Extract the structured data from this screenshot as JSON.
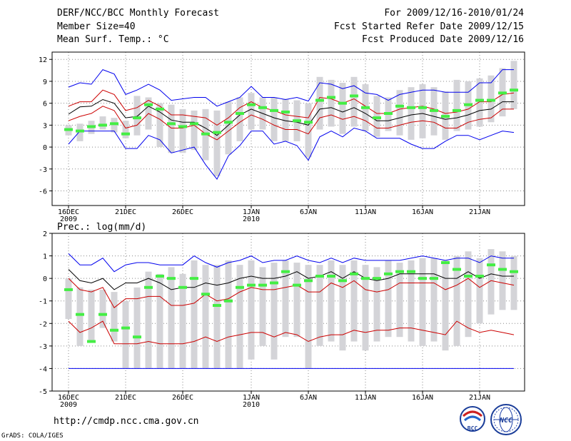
{
  "header": {
    "title": "DERF/NCC/BCC Monthly Forecast",
    "member": "Member Size=40",
    "variable": "Mean Surf. Temp.: °C",
    "period": "For 2009/12/16-2010/01/24",
    "start": "Fcst Started Refer Date 2009/12/15",
    "produced": "Fcst Produced Date 2009/12/16"
  },
  "footer": {
    "url": "http://cmdp.ncc.cma.gov.cn",
    "credit": "GrADS: COLA/IGES",
    "logo_left": "BCC",
    "logo_right": "NCC"
  },
  "colors": {
    "max_line": "#0000ee",
    "pct_line": "#cc0000",
    "mean_line": "#000000",
    "box": "#d4d4d8",
    "obs": "#44ee44"
  },
  "chart_data": [
    {
      "type": "line",
      "title": "Mean Surf. Temp.: °C",
      "ylim": [
        -8,
        13
      ],
      "yticks": [
        -6,
        -3,
        0,
        3,
        6,
        9,
        12
      ],
      "grid": true,
      "x_ticks": [
        {
          "day": 1,
          "label": "16DEC",
          "sub": "2009"
        },
        {
          "day": 6,
          "label": "21DEC",
          "sub": ""
        },
        {
          "day": 11,
          "label": "26DEC",
          "sub": ""
        },
        {
          "day": 17,
          "label": "1JAN",
          "sub": "2010"
        },
        {
          "day": 22,
          "label": "6JAN",
          "sub": ""
        },
        {
          "day": 27,
          "label": "11JAN",
          "sub": ""
        },
        {
          "day": 32,
          "label": "16JAN",
          "sub": ""
        },
        {
          "day": 37,
          "label": "21JAN",
          "sub": ""
        }
      ],
      "days": [
        1,
        2,
        3,
        4,
        5,
        6,
        7,
        8,
        9,
        10,
        11,
        12,
        13,
        14,
        15,
        16,
        17,
        18,
        19,
        20,
        21,
        22,
        23,
        24,
        25,
        26,
        27,
        28,
        29,
        30,
        31,
        32,
        33,
        34,
        35,
        36,
        37,
        38,
        39,
        40
      ],
      "max": [
        8.2,
        8.8,
        8.6,
        10.6,
        10.0,
        7.2,
        7.8,
        8.6,
        7.8,
        6.4,
        6.6,
        6.8,
        6.8,
        5.6,
        6.2,
        6.8,
        8.3,
        6.8,
        6.8,
        6.5,
        6.8,
        6.3,
        8.8,
        8.6,
        8.0,
        8.4,
        7.4,
        7.2,
        6.4,
        7.2,
        7.5,
        7.8,
        7.8,
        7.5,
        7.5,
        7.5,
        8.8,
        8.8,
        10.6,
        10.6
      ],
      "p_upper": [
        5.6,
        6.2,
        6.2,
        7.8,
        7.2,
        5.0,
        5.4,
        6.4,
        5.6,
        4.4,
        4.4,
        4.2,
        4.0,
        3.0,
        4.0,
        5.4,
        6.2,
        5.4,
        5.0,
        4.4,
        4.2,
        4.0,
        6.8,
        6.6,
        6.0,
        6.6,
        5.6,
        4.6,
        4.6,
        5.2,
        5.4,
        5.6,
        5.2,
        4.6,
        4.8,
        5.2,
        6.2,
        6.2,
        7.2,
        7.4
      ],
      "mean": [
        4.5,
        5.5,
        5.6,
        6.5,
        6.0,
        4.0,
        4.2,
        5.6,
        4.8,
        3.7,
        3.4,
        3.4,
        2.6,
        1.6,
        3.0,
        4.4,
        5.2,
        4.6,
        4.0,
        3.6,
        3.4,
        3.0,
        5.2,
        5.4,
        4.8,
        5.4,
        4.6,
        3.6,
        3.6,
        4.0,
        4.4,
        4.6,
        4.2,
        3.8,
        4.0,
        4.4,
        5.0,
        5.2,
        6.2,
        6.2
      ],
      "p_lower": [
        3.6,
        4.2,
        4.6,
        5.6,
        5.0,
        2.6,
        3.0,
        4.6,
        3.8,
        2.6,
        2.6,
        3.0,
        1.8,
        1.0,
        2.2,
        3.4,
        4.4,
        3.8,
        3.0,
        2.4,
        2.4,
        1.8,
        4.0,
        4.4,
        3.8,
        4.2,
        3.6,
        2.6,
        2.6,
        3.0,
        3.4,
        3.6,
        3.4,
        2.6,
        2.6,
        3.4,
        3.8,
        4.0,
        5.2,
        5.2
      ],
      "min": [
        0.4,
        2.2,
        2.2,
        2.2,
        2.2,
        -0.2,
        -0.2,
        1.6,
        1.0,
        -0.8,
        -0.4,
        0.0,
        -2.4,
        -4.4,
        -1.2,
        0.2,
        2.2,
        2.2,
        0.4,
        0.8,
        0.2,
        -1.8,
        1.4,
        2.2,
        1.4,
        2.6,
        2.2,
        1.2,
        1.2,
        1.2,
        0.4,
        -0.2,
        -0.2,
        0.8,
        1.6,
        1.6,
        1.0,
        1.6,
        2.2,
        2.0
      ],
      "box_high": [
        3.0,
        3.2,
        3.6,
        4.2,
        4.0,
        3.6,
        7.0,
        6.8,
        6.0,
        5.8,
        5.2,
        5.0,
        5.2,
        5.0,
        6.2,
        6.8,
        7.4,
        6.8,
        6.8,
        6.6,
        6.4,
        6.0,
        9.6,
        9.2,
        8.8,
        9.6,
        8.6,
        7.0,
        6.8,
        7.8,
        8.2,
        8.6,
        8.2,
        7.6,
        9.2,
        9.0,
        9.4,
        9.8,
        10.8,
        11.8
      ],
      "box_low": [
        1.6,
        0.8,
        1.8,
        2.4,
        2.0,
        1.2,
        1.6,
        2.4,
        0.0,
        -0.8,
        -0.8,
        -0.4,
        -1.8,
        -4.0,
        -1.0,
        0.8,
        2.4,
        2.4,
        0.8,
        0.8,
        0.8,
        -1.4,
        2.4,
        2.8,
        1.8,
        2.8,
        2.2,
        1.4,
        2.2,
        1.6,
        1.0,
        1.2,
        1.6,
        1.0,
        2.2,
        2.4,
        2.8,
        3.4,
        4.2,
        5.2
      ],
      "obs": [
        2.4,
        2.2,
        2.8,
        3.0,
        3.2,
        1.8,
        4.0,
        5.8,
        5.2,
        3.2,
        2.8,
        3.2,
        1.8,
        2.0,
        3.4,
        4.6,
        5.8,
        5.4,
        5.0,
        4.8,
        3.6,
        3.4,
        6.4,
        6.8,
        6.0,
        7.0,
        5.4,
        4.0,
        4.6,
        5.6,
        5.4,
        5.4,
        5.0,
        4.2,
        5.0,
        5.8,
        6.4,
        6.4,
        7.4,
        7.8
      ]
    },
    {
      "type": "line",
      "title": "Prec.: log(mm/d)",
      "ylim": [
        -5,
        2
      ],
      "yticks": [
        -5,
        -4,
        -3,
        -2,
        -1,
        0,
        1,
        2
      ],
      "grid": true,
      "x_ticks": [
        {
          "day": 1,
          "label": "16DEC",
          "sub": "2009"
        },
        {
          "day": 6,
          "label": "21DEC",
          "sub": ""
        },
        {
          "day": 11,
          "label": "26DEC",
          "sub": ""
        },
        {
          "day": 17,
          "label": "1JAN",
          "sub": "2010"
        },
        {
          "day": 22,
          "label": "6JAN",
          "sub": ""
        },
        {
          "day": 27,
          "label": "11JAN",
          "sub": ""
        },
        {
          "day": 32,
          "label": "16JAN",
          "sub": ""
        },
        {
          "day": 37,
          "label": "21JAN",
          "sub": ""
        }
      ],
      "days": [
        1,
        2,
        3,
        4,
        5,
        6,
        7,
        8,
        9,
        10,
        11,
        12,
        13,
        14,
        15,
        16,
        17,
        18,
        19,
        20,
        21,
        22,
        23,
        24,
        25,
        26,
        27,
        28,
        29,
        30,
        31,
        32,
        33,
        34,
        35,
        36,
        37,
        38,
        39,
        40
      ],
      "max": [
        1.1,
        0.6,
        0.6,
        0.9,
        0.3,
        0.6,
        0.7,
        0.7,
        0.6,
        0.6,
        0.6,
        1.0,
        0.7,
        0.5,
        0.7,
        0.8,
        1.0,
        0.7,
        0.8,
        0.8,
        1.0,
        0.8,
        0.7,
        0.9,
        0.7,
        0.9,
        0.8,
        0.8,
        0.8,
        0.8,
        0.9,
        1.0,
        0.9,
        0.8,
        0.9,
        0.9,
        0.7,
        1.0,
        0.9,
        0.9
      ],
      "mean": [
        0.4,
        -0.1,
        -0.2,
        0.0,
        -0.5,
        -0.2,
        -0.2,
        0.0,
        -0.2,
        -0.5,
        -0.4,
        -0.4,
        -0.2,
        -0.3,
        -0.2,
        0.0,
        0.1,
        0.0,
        0.0,
        0.1,
        0.3,
        0.0,
        0.1,
        0.3,
        0.0,
        0.3,
        0.0,
        -0.1,
        0.0,
        0.2,
        0.2,
        0.2,
        0.2,
        0.0,
        0.0,
        0.3,
        0.0,
        0.2,
        0.1,
        0.1
      ],
      "p_upper": [
        0.0,
        -0.5,
        -0.6,
        -0.4,
        -1.3,
        -0.9,
        -0.9,
        -0.8,
        -0.8,
        -1.2,
        -1.2,
        -1.1,
        -0.7,
        -1.0,
        -0.9,
        -0.6,
        -0.4,
        -0.5,
        -0.5,
        -0.4,
        -0.3,
        -0.6,
        -0.6,
        -0.2,
        -0.4,
        -0.1,
        -0.5,
        -0.6,
        -0.5,
        -0.2,
        -0.2,
        -0.2,
        -0.2,
        -0.5,
        -0.3,
        0.0,
        -0.4,
        -0.1,
        -0.2,
        -0.3
      ],
      "p_lower": [
        -1.9,
        -2.4,
        -2.2,
        -1.9,
        -2.9,
        -2.9,
        -2.9,
        -2.8,
        -2.9,
        -2.9,
        -2.9,
        -2.8,
        -2.6,
        -2.8,
        -2.6,
        -2.5,
        -2.4,
        -2.4,
        -2.6,
        -2.4,
        -2.5,
        -2.8,
        -2.6,
        -2.5,
        -2.5,
        -2.3,
        -2.4,
        -2.3,
        -2.3,
        -2.2,
        -2.2,
        -2.3,
        -2.4,
        -2.5,
        -1.9,
        -2.2,
        -2.4,
        -2.3,
        -2.4,
        -2.5
      ],
      "min": [
        -4.0,
        -4.0,
        -4.0,
        -4.0,
        -4.0,
        -4.0,
        -4.0,
        -4.0,
        -4.0,
        -4.0,
        -4.0,
        -4.0,
        -4.0,
        -4.0,
        -4.0,
        -4.0,
        -4.0,
        -4.0,
        -4.0,
        -4.0,
        -4.0,
        -4.0,
        -4.0,
        -4.0,
        -4.0,
        -4.0,
        -4.0,
        -4.0,
        -4.0,
        -4.0,
        -4.0,
        -4.0,
        -4.0,
        -4.0,
        -4.0,
        -4.0,
        -4.0,
        -4.0,
        -4.0,
        -4.0
      ],
      "box_high": [
        0.0,
        -0.4,
        -0.5,
        -0.5,
        -0.6,
        -1.0,
        -0.4,
        0.3,
        0.2,
        0.5,
        0.2,
        0.8,
        0.6,
        0.6,
        0.8,
        0.6,
        0.8,
        0.5,
        0.7,
        0.8,
        0.7,
        0.6,
        0.6,
        0.8,
        0.6,
        0.8,
        0.6,
        0.5,
        0.8,
        0.7,
        0.8,
        0.9,
        0.9,
        0.8,
        1.0,
        1.2,
        0.9,
        1.3,
        1.2,
        1.0
      ],
      "box_low": [
        -1.8,
        -3.0,
        -2.8,
        -2.2,
        -2.8,
        -4.0,
        -4.0,
        -4.0,
        -4.0,
        -4.0,
        -4.0,
        -4.0,
        -4.0,
        -4.0,
        -4.0,
        -4.0,
        -3.6,
        -3.0,
        -3.6,
        -2.6,
        -2.6,
        -4.0,
        -3.0,
        -2.8,
        -3.2,
        -2.8,
        -3.2,
        -2.8,
        -2.6,
        -2.6,
        -2.8,
        -3.0,
        -2.8,
        -3.2,
        -3.0,
        -2.6,
        -2.0,
        -1.6,
        -1.4,
        -1.4
      ],
      "obs": [
        -0.5,
        -1.6,
        -2.8,
        -1.6,
        -2.3,
        -2.2,
        -2.6,
        -0.4,
        0.1,
        0.0,
        -0.4,
        0.0,
        -0.7,
        -1.2,
        -1.0,
        -0.4,
        -0.3,
        -0.3,
        -0.2,
        0.3,
        -0.3,
        -0.1,
        0.1,
        0.1,
        -0.1,
        0.2,
        0.0,
        0.0,
        0.2,
        0.3,
        0.3,
        0.0,
        0.0,
        0.7,
        0.4,
        0.1,
        0.1,
        0.6,
        0.4,
        0.3
      ]
    }
  ]
}
